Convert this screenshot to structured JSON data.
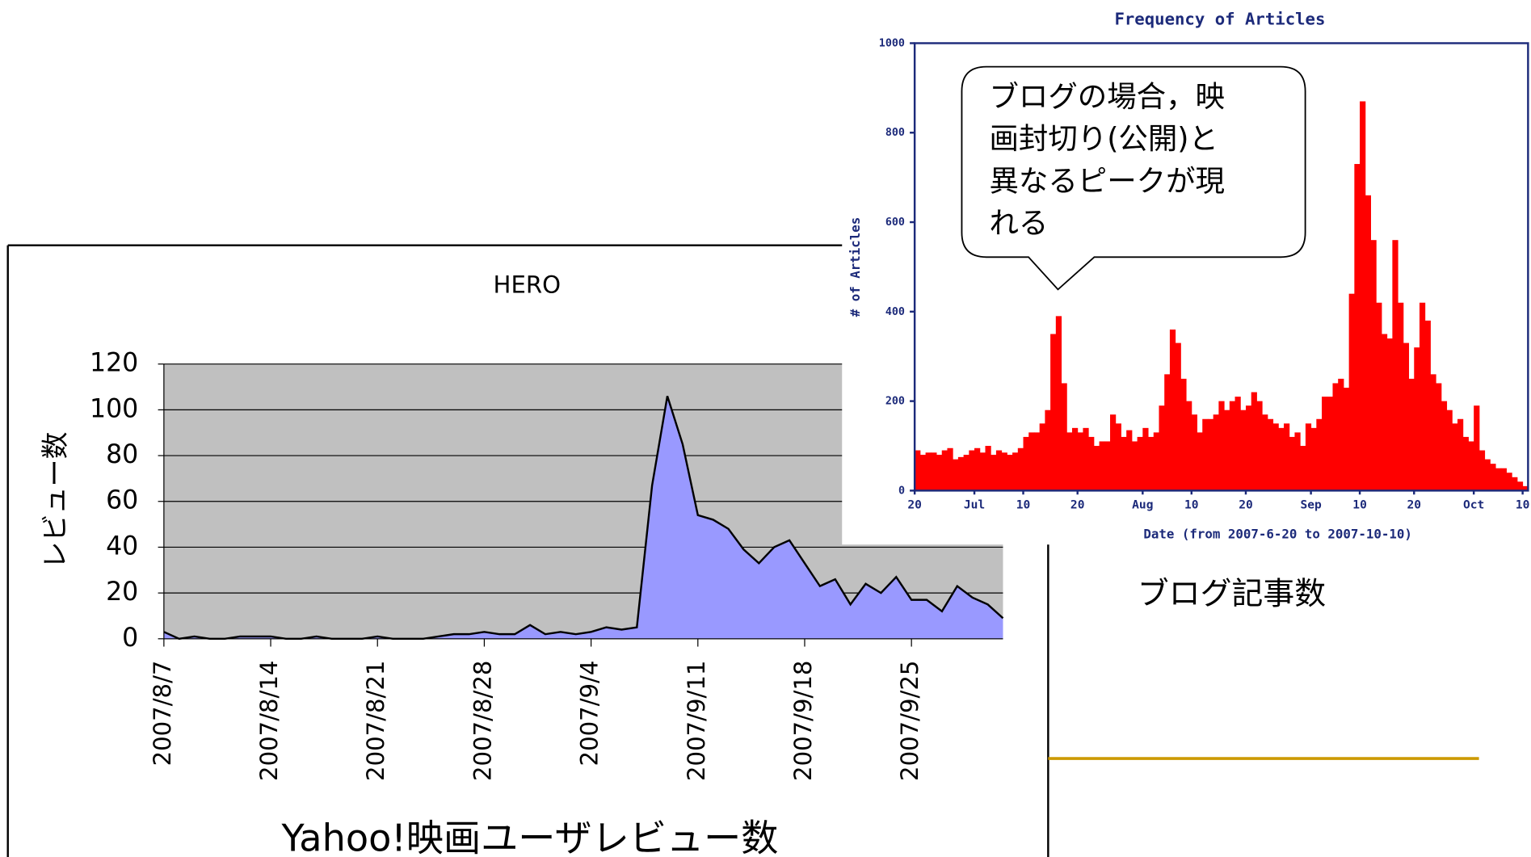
{
  "chart_data": [
    {
      "type": "area",
      "title": "HERO",
      "y_label": "レビュー数",
      "caption": "Yahoo!映画ユーザレビュー数",
      "categories": [
        "2007/8/7",
        null,
        null,
        null,
        null,
        null,
        null,
        "2007/8/14",
        null,
        null,
        null,
        null,
        null,
        null,
        "2007/8/21",
        null,
        null,
        null,
        null,
        null,
        null,
        "2007/8/28",
        null,
        null,
        null,
        null,
        null,
        null,
        "2007/9/4",
        null,
        null,
        null,
        null,
        null,
        null,
        "2007/9/11",
        null,
        null,
        null,
        null,
        null,
        null,
        "2007/9/18",
        null,
        null,
        null,
        null,
        null,
        null,
        "2007/9/25",
        null,
        null,
        null,
        null,
        null,
        null
      ],
      "values": [
        3,
        0,
        1,
        0,
        0,
        1,
        1,
        1,
        0,
        0,
        1,
        0,
        0,
        0,
        1,
        0,
        0,
        0,
        1,
        2,
        2,
        3,
        2,
        2,
        6,
        2,
        3,
        2,
        3,
        5,
        4,
        5,
        67,
        106,
        85,
        54,
        52,
        48,
        39,
        33,
        40,
        43,
        33,
        23,
        26,
        15,
        24,
        20,
        27,
        17,
        17,
        12,
        23,
        18,
        15,
        9
      ],
      "color": "#9999ff",
      "plot_background": "#c0c0c0",
      "ylim": [
        0,
        120
      ],
      "yticks": [
        0,
        20,
        40,
        60,
        80,
        100,
        120
      ],
      "grid": true
    },
    {
      "type": "bar",
      "title": "Frequency of Articles",
      "y_label": "# of Articles",
      "x_label": "Date (from 2007-6-20 to 2007-10-10)",
      "caption": "ブログ記事数",
      "annotation": [
        "ブログの場合，映",
        "画封切り(公開)と",
        "異なるピークが現",
        "れる"
      ],
      "categories": [
        "20",
        null,
        null,
        null,
        null,
        null,
        null,
        null,
        null,
        null,
        null,
        "Jul",
        null,
        null,
        null,
        null,
        null,
        null,
        null,
        null,
        "10",
        null,
        null,
        null,
        null,
        null,
        null,
        null,
        null,
        null,
        "20",
        null,
        null,
        null,
        null,
        null,
        null,
        null,
        null,
        null,
        null,
        null,
        "Aug",
        null,
        null,
        null,
        null,
        null,
        null,
        null,
        null,
        "10",
        null,
        null,
        null,
        null,
        null,
        null,
        null,
        null,
        null,
        "20",
        null,
        null,
        null,
        null,
        null,
        null,
        null,
        null,
        null,
        null,
        null,
        "Sep",
        null,
        null,
        null,
        null,
        null,
        null,
        null,
        null,
        "10",
        null,
        null,
        null,
        null,
        null,
        null,
        null,
        null,
        null,
        "20",
        null,
        null,
        null,
        null,
        null,
        null,
        null,
        null,
        null,
        null,
        "Oct",
        null,
        null,
        null,
        null,
        null,
        null,
        null,
        null,
        "10"
      ],
      "values": [
        90,
        80,
        85,
        85,
        80,
        90,
        95,
        70,
        75,
        80,
        90,
        95,
        85,
        100,
        80,
        90,
        85,
        80,
        85,
        95,
        120,
        130,
        130,
        150,
        180,
        350,
        390,
        240,
        130,
        140,
        130,
        140,
        120,
        100,
        110,
        110,
        170,
        150,
        120,
        135,
        110,
        120,
        140,
        120,
        130,
        190,
        260,
        360,
        330,
        250,
        200,
        170,
        130,
        160,
        160,
        170,
        200,
        180,
        200,
        210,
        180,
        190,
        220,
        200,
        170,
        160,
        150,
        140,
        150,
        120,
        130,
        100,
        150,
        140,
        160,
        210,
        210,
        240,
        250,
        230,
        440,
        730,
        870,
        660,
        560,
        420,
        350,
        340,
        560,
        420,
        330,
        250,
        320,
        420,
        380,
        260,
        240,
        200,
        180,
        150,
        160,
        120,
        110,
        190,
        90,
        70,
        60,
        50,
        50,
        40,
        30,
        20,
        10
      ],
      "color": "#ff0000",
      "ylim": [
        0,
        1000
      ],
      "yticks": [
        0,
        200,
        400,
        600,
        800,
        1000
      ]
    }
  ]
}
